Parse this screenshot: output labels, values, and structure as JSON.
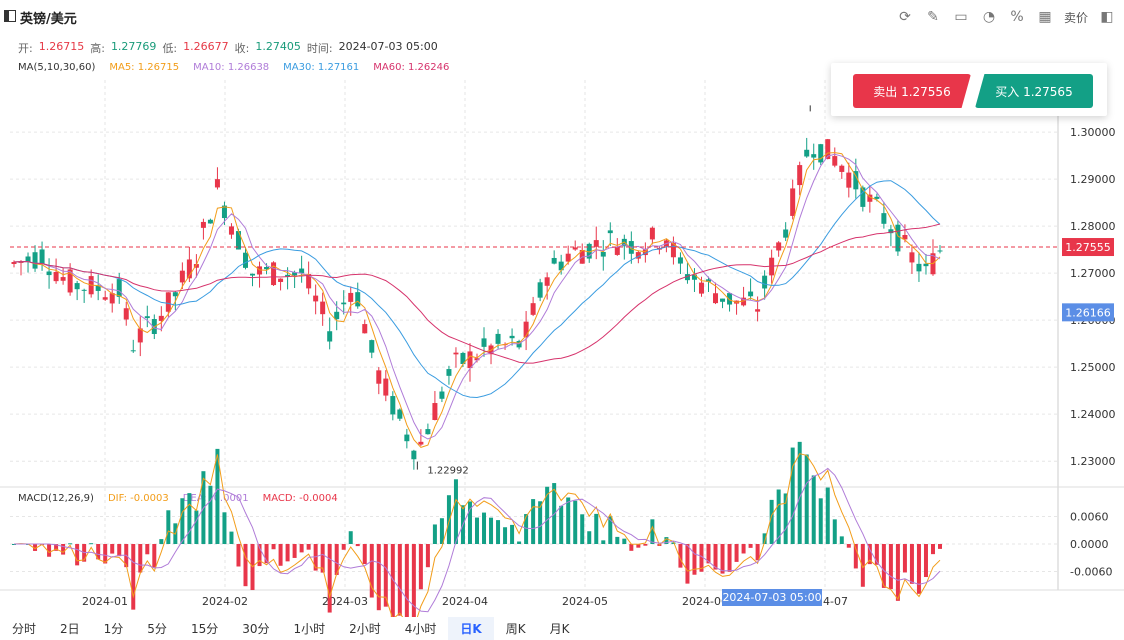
{
  "header": {
    "title": "英镑/美元",
    "tools": [
      "refresh-icon",
      "draw-icon",
      "chart-type-icon",
      "indicator-icon",
      "percent-icon",
      "layout-icon"
    ],
    "tool_text": "卖价"
  },
  "ohlc": {
    "open_label": "开:",
    "open": "1.26715",
    "high_label": "高:",
    "high": "1.27769",
    "low_label": "低:",
    "low": "1.26677",
    "close_label": "收:",
    "close": "1.27405",
    "time_label": "时间:",
    "time": "2024-07-03 05:00"
  },
  "ma_legend": {
    "name": "MA(5,10,30,60)",
    "ma5": "MA5: 1.26715",
    "ma10": "MA10: 1.26638",
    "ma30": "MA30: 1.27161",
    "ma60": "MA60: 1.26246",
    "colors": {
      "ma5": "#f29d1a",
      "ma10": "#b07cd8",
      "ma30": "#3a9ce0",
      "ma60": "#d6336c"
    }
  },
  "macd_legend": {
    "name": "MACD(12,26,9)",
    "dif": "DIF: -0.0003",
    "dea": "DEA: -0.0001",
    "macd": "MACD: -0.0004"
  },
  "trade": {
    "sell": "卖出 1.27556",
    "buy": "买入 1.27565"
  },
  "timeframes": [
    "分时",
    "2日",
    "1分",
    "5分",
    "15分",
    "30分",
    "1小时",
    "2小时",
    "4小时",
    "日K",
    "周K",
    "月K"
  ],
  "active_timeframe": "日K",
  "chart_data": {
    "type": "candlestick",
    "price_axis": [
      "1.30000",
      "1.29000",
      "1.28000",
      "1.27000",
      "1.26000",
      "1.25000",
      "1.24000",
      "1.23000"
    ],
    "price_range": [
      1.226,
      1.3115
    ],
    "macd_axis": [
      "0.0060",
      "0.0000",
      "-0.0060"
    ],
    "macd_range": [
      -0.0085,
      0.0085
    ],
    "x_labels": [
      "2024-01",
      "2024-02",
      "2024-03",
      "2024-04",
      "2024-05",
      "2024-06",
      "2024-07"
    ],
    "current_price_label": "1.27555",
    "current_price": 1.27555,
    "crosshair_price_label": "1.26166",
    "crosshair_price": 1.26166,
    "crosshair_time_label": "2024-07-03 05:00",
    "low_annotation": "1.22992",
    "low_value": 1.22992,
    "high_value": 1.3044,
    "colors": {
      "up": "#e8364a",
      "down": "#13a086",
      "grid": "#e6e6e6"
    }
  }
}
